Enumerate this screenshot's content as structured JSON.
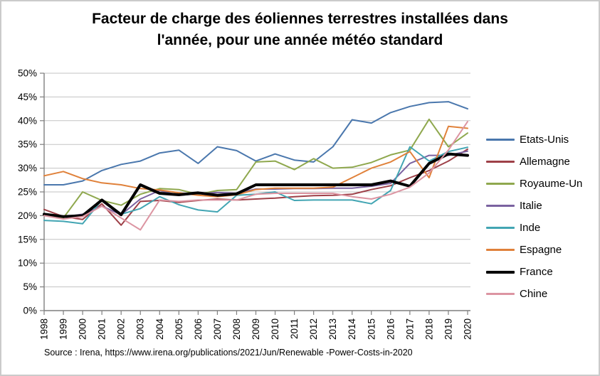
{
  "page": {
    "title_line1": "Facteur de charge des éoliennes terrestres installées dans",
    "title_line2": "l'année, pour une année météo standard",
    "source": "Source : Irena, https://www.irena.org/publications/2021/Jun/Renewable -Power-Costs-in-2020"
  },
  "chart_data": {
    "type": "line",
    "title": "Facteur de charge des éoliennes terrestres installées dans l'année, pour une année météo standard",
    "xlabel": "",
    "ylabel": "",
    "x": [
      1998,
      1999,
      2000,
      2001,
      2002,
      2003,
      2004,
      2005,
      2006,
      2007,
      2008,
      2009,
      2010,
      2011,
      2012,
      2013,
      2014,
      2015,
      2016,
      2017,
      2018,
      2019,
      2020
    ],
    "ylim": [
      0,
      50
    ],
    "ytick_step": 5,
    "ytick_labels": [
      "0%",
      "5%",
      "10%",
      "15%",
      "20%",
      "25%",
      "30%",
      "35%",
      "40%",
      "45%",
      "50%"
    ],
    "grid": true,
    "legend_position": "right",
    "axis_color": "#7f7f7f",
    "grid_color": "#c3c3c3",
    "series": [
      {
        "name": "Etats-Unis",
        "color": "#4a77ad",
        "width": 2,
        "values": [
          26.5,
          26.5,
          27.3,
          29.5,
          30.8,
          31.5,
          33.2,
          33.8,
          31.0,
          34.5,
          33.7,
          31.5,
          33.0,
          31.7,
          31.3,
          34.5,
          40.2,
          39.5,
          41.7,
          43.0,
          43.8,
          44.0,
          42.5
        ]
      },
      {
        "name": "Allemagne",
        "color": "#9e4048",
        "width": 2,
        "values": [
          21.3,
          19.8,
          19.2,
          22.5,
          18.0,
          23.0,
          23.2,
          22.8,
          23.2,
          23.5,
          23.3,
          23.5,
          23.7,
          24.0,
          24.2,
          24.3,
          24.5,
          25.5,
          26.3,
          28.0,
          29.5,
          31.5,
          34.0
        ]
      },
      {
        "name": "Royaume-Un",
        "color": "#8fa84e",
        "width": 2,
        "values": [
          20.2,
          19.5,
          25.0,
          23.2,
          22.2,
          24.5,
          25.7,
          25.5,
          24.5,
          25.3,
          25.5,
          31.3,
          31.5,
          29.7,
          32.0,
          30.0,
          30.2,
          31.2,
          32.8,
          33.8,
          40.3,
          34.5,
          37.4
        ]
      },
      {
        "name": "Italie",
        "color": "#7a62a0",
        "width": 2,
        "values": [
          20.2,
          19.7,
          20.3,
          22.0,
          20.2,
          23.5,
          25.3,
          24.3,
          24.6,
          24.9,
          24.7,
          25.6,
          25.6,
          25.7,
          25.7,
          25.8,
          25.8,
          26.2,
          26.8,
          31.0,
          32.7,
          32.7,
          33.6
        ]
      },
      {
        "name": "Inde",
        "color": "#42a5b3",
        "width": 2,
        "values": [
          19.0,
          18.8,
          18.3,
          23.3,
          20.3,
          21.5,
          24.0,
          22.3,
          21.2,
          20.8,
          24.3,
          24.5,
          25.0,
          23.2,
          23.3,
          23.3,
          23.3,
          22.5,
          25.3,
          34.5,
          31.5,
          33.5,
          34.4
        ]
      },
      {
        "name": "Espagne",
        "color": "#e0813a",
        "width": 2,
        "values": [
          28.4,
          29.3,
          27.8,
          26.9,
          26.5,
          25.7,
          25.4,
          24.8,
          24.3,
          24.0,
          24.4,
          25.5,
          25.8,
          25.8,
          25.8,
          26.0,
          28.0,
          30.0,
          31.3,
          33.5,
          28.0,
          38.8,
          38.4
        ]
      },
      {
        "name": "France",
        "color": "#000000",
        "width": 4,
        "values": [
          20.3,
          19.8,
          20.0,
          23.3,
          20.2,
          26.5,
          24.7,
          24.4,
          24.8,
          24.3,
          24.6,
          26.5,
          26.5,
          26.5,
          26.5,
          26.5,
          26.5,
          26.5,
          27.3,
          26.2,
          31.0,
          33.0,
          32.7
        ]
      },
      {
        "name": "Chine",
        "color": "#dc95a2",
        "width": 2,
        "values": [
          20.0,
          19.3,
          19.8,
          22.0,
          19.5,
          17.0,
          23.3,
          23.0,
          23.3,
          23.3,
          23.3,
          24.5,
          24.7,
          24.7,
          24.7,
          24.7,
          24.0,
          23.5,
          24.5,
          26.0,
          29.0,
          33.8,
          39.8
        ]
      }
    ]
  }
}
